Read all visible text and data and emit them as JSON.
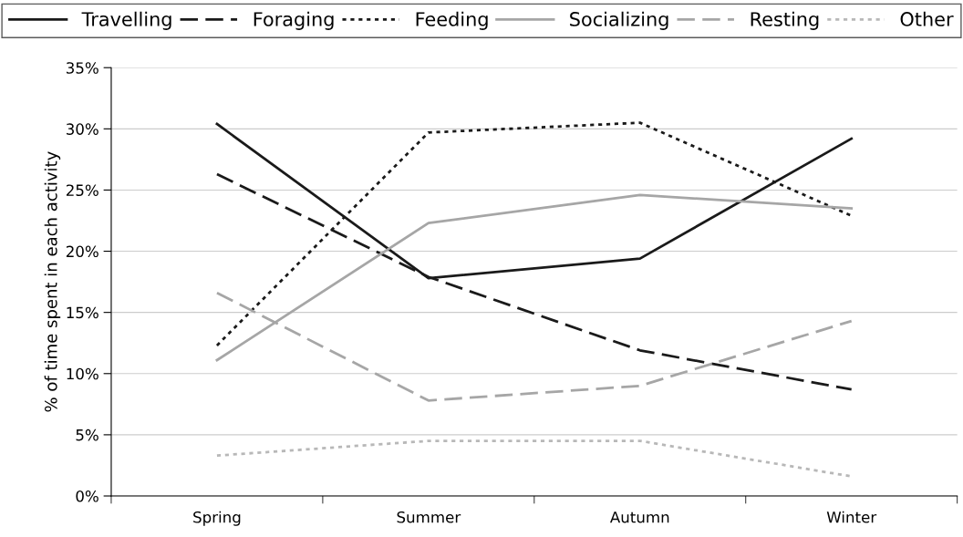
{
  "chart_data": {
    "type": "line",
    "ylabel": "% of time spent in each activity",
    "categories": [
      "Spring",
      "Summer",
      "Autumn",
      "Winter"
    ],
    "series": [
      {
        "name": "Travelling",
        "color": "#1a1a1a",
        "line_style": "solid",
        "values": [
          30.4,
          17.8,
          19.4,
          29.2
        ]
      },
      {
        "name": "Foraging",
        "color": "#1a1a1a",
        "line_style": "dashed",
        "values": [
          26.3,
          17.9,
          11.9,
          8.7
        ]
      },
      {
        "name": "Feeding",
        "color": "#1a1a1a",
        "line_style": "dotted",
        "values": [
          12.3,
          29.7,
          30.5,
          22.9
        ]
      },
      {
        "name": "Socializing",
        "color": "#a6a6a6",
        "line_style": "solid",
        "values": [
          11.1,
          22.3,
          24.6,
          23.5
        ]
      },
      {
        "name": "Resting",
        "color": "#a6a6a6",
        "line_style": "dashed",
        "values": [
          16.6,
          7.8,
          9.0,
          14.3
        ]
      },
      {
        "name": "Other",
        "color": "#b8b8b8",
        "line_style": "dotted",
        "values": [
          3.3,
          4.5,
          4.5,
          1.6
        ]
      }
    ],
    "ylim": [
      0,
      35
    ],
    "yticks": [
      {
        "value": 0,
        "label": "0%"
      },
      {
        "value": 5,
        "label": "5%"
      },
      {
        "value": 10,
        "label": "10%"
      },
      {
        "value": 15,
        "label": "15%"
      },
      {
        "value": 20,
        "label": "20%"
      },
      {
        "value": 25,
        "label": "25%"
      },
      {
        "value": 30,
        "label": "30%"
      },
      {
        "value": 35,
        "label": "35%"
      }
    ],
    "grid": "y",
    "legend": "top",
    "marker": "none"
  }
}
